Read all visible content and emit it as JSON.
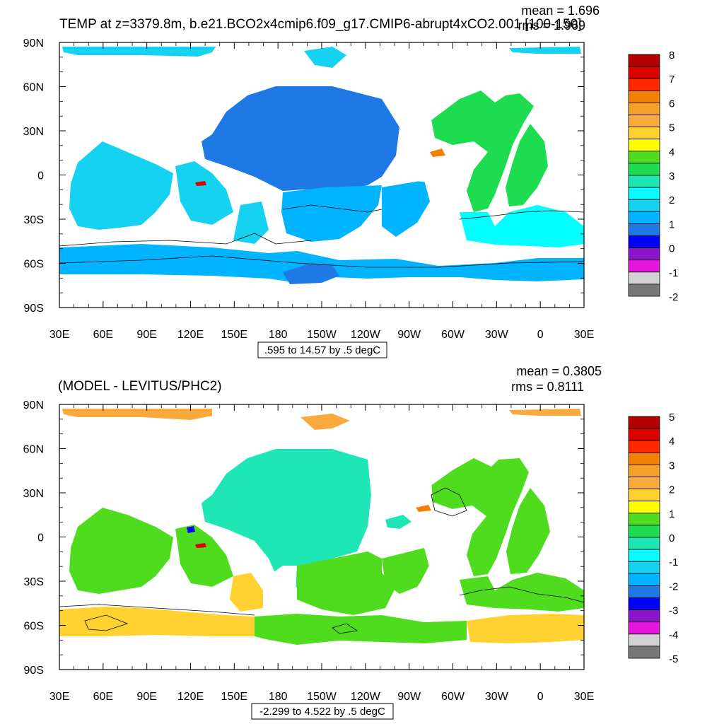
{
  "chart_data": [
    {
      "type": "heatmap",
      "subtype": "filled-contour-map",
      "title": "TEMP at z=3379.8m, b.e21.BCO2x4cmip6.f09_g17.CMIP6-abrupt4xCO2.001 [100-150]",
      "stats": {
        "mean": "mean = 1.696",
        "rms": "rms = 1.969"
      },
      "contour_info": ".595 to 14.57 by .5 degC",
      "x_ticks": [
        "30E",
        "60E",
        "90E",
        "120E",
        "150E",
        "180",
        "150W",
        "120W",
        "90W",
        "60W",
        "30W",
        "0",
        "30E"
      ],
      "y_ticks": [
        "90N",
        "60N",
        "30N",
        "0",
        "30S",
        "60S",
        "90S"
      ],
      "lon_range": [
        30,
        390
      ],
      "lat_range": [
        -90,
        90
      ],
      "units": "degC",
      "colorbar": {
        "labels": [
          "8",
          "7",
          "6",
          "5",
          "4",
          "3",
          "2",
          "1",
          "0",
          "-1",
          "-2"
        ],
        "colors": [
          "#b40000",
          "#dc0000",
          "#ff2800",
          "#f08200",
          "#f5a028",
          "#faaa3c",
          "#ffd232",
          "#ffff00",
          "#50dc1e",
          "#1edc50",
          "#1ee6b4",
          "#00ffff",
          "#14d2f0",
          "#00b4ff",
          "#1e78e6",
          "#0000ff",
          "#8c14c8",
          "#e614dc",
          "#d2d2d2",
          "#787878"
        ]
      },
      "regions": [
        {
          "name": "arctic",
          "color": "#14d2f0",
          "approx_value": 1.5
        },
        {
          "name": "north-pacific",
          "color": "#1e78e6",
          "approx_value": 0.8
        },
        {
          "name": "indian-ocean",
          "color": "#14d2f0",
          "approx_value": 1.7
        },
        {
          "name": "south-pacific",
          "color": "#00b4ff",
          "approx_value": 1.2
        },
        {
          "name": "atlantic",
          "color": "#1edc50",
          "approx_value": 3.0
        },
        {
          "name": "south-atlantic",
          "color": "#00ffff",
          "approx_value": 2.2
        },
        {
          "name": "southern-ocean",
          "color": "#00b4ff",
          "approx_value": 1.2
        }
      ]
    },
    {
      "type": "heatmap",
      "subtype": "filled-contour-map",
      "title": "(MODEL - LEVITUS/PHC2)",
      "stats": {
        "mean": "mean = 0.3805",
        "rms": "rms = 0.8111"
      },
      "contour_info": "-2.299 to 4.522 by .5 degC",
      "x_ticks": [
        "30E",
        "60E",
        "90E",
        "120E",
        "150E",
        "180",
        "150W",
        "120W",
        "90W",
        "60W",
        "30W",
        "0",
        "30E"
      ],
      "y_ticks": [
        "90N",
        "60N",
        "30N",
        "0",
        "30S",
        "60S",
        "90S"
      ],
      "lon_range": [
        30,
        390
      ],
      "lat_range": [
        -90,
        90
      ],
      "units": "degC",
      "colorbar": {
        "labels": [
          "5",
          "4",
          "3",
          "2",
          "1",
          "0",
          "-1",
          "-2",
          "-3",
          "-4",
          "-5"
        ],
        "colors": [
          "#b40000",
          "#dc0000",
          "#ff2800",
          "#f08200",
          "#f5a028",
          "#faaa3c",
          "#ffd232",
          "#ffff00",
          "#50dc1e",
          "#1edc50",
          "#1ee6b4",
          "#00ffff",
          "#14d2f0",
          "#00b4ff",
          "#1e78e6",
          "#0000ff",
          "#8c14c8",
          "#e614dc",
          "#d2d2d2",
          "#787878"
        ]
      },
      "regions": [
        {
          "name": "arctic",
          "color": "#faaa3c",
          "approx_value": 1.7
        },
        {
          "name": "north-pacific",
          "color": "#1ee6b4",
          "approx_value": -0.5
        },
        {
          "name": "indian-ocean",
          "color": "#50dc1e",
          "approx_value": 0.3
        },
        {
          "name": "south-pacific",
          "color": "#50dc1e",
          "approx_value": 0.3
        },
        {
          "name": "atlantic",
          "color": "#50dc1e",
          "approx_value": 0.4
        },
        {
          "name": "southern-ocean",
          "color": "#ffd232",
          "approx_value": 1.3
        }
      ]
    }
  ]
}
